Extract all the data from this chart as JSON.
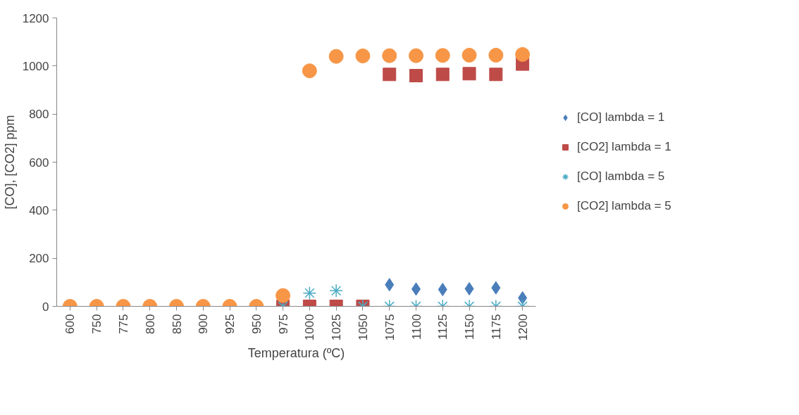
{
  "chart_data": {
    "type": "scatter",
    "xlabel": "Temperatura (ºC)",
    "ylabel": "[CO], [CO2] ppm",
    "categories": [
      "600",
      "750",
      "775",
      "800",
      "850",
      "900",
      "925",
      "950",
      "975",
      "1000",
      "1025",
      "1050",
      "1075",
      "1100",
      "1125",
      "1150",
      "1175",
      "1200"
    ],
    "ylim": [
      0,
      1200
    ],
    "yticks": [
      0,
      200,
      400,
      600,
      800,
      1000,
      1200
    ],
    "grid": false,
    "legend": "right",
    "series": [
      {
        "name": "[CO] lambda = 1",
        "color": "#4a7ebb",
        "marker": "diamond",
        "values": [
          null,
          null,
          null,
          null,
          null,
          null,
          null,
          null,
          null,
          null,
          null,
          null,
          90,
          72,
          70,
          73,
          77,
          35
        ]
      },
      {
        "name": "[CO2] lambda = 1",
        "color": "#be4b48",
        "marker": "square",
        "values": [
          null,
          null,
          null,
          null,
          null,
          null,
          null,
          null,
          0,
          0,
          0,
          0,
          965,
          960,
          965,
          968,
          965,
          1008
        ]
      },
      {
        "name": "[CO] lambda = 5",
        "color": "#4bacc6",
        "marker": "cross",
        "values": [
          null,
          null,
          null,
          null,
          null,
          null,
          null,
          null,
          0,
          55,
          65,
          0,
          0,
          0,
          0,
          0,
          0,
          0
        ]
      },
      {
        "name": "[CO2] lambda = 5",
        "color": "#f79646",
        "marker": "circle",
        "values": [
          0,
          0,
          0,
          0,
          0,
          0,
          0,
          0,
          45,
          980,
          1040,
          1042,
          1043,
          1043,
          1044,
          1045,
          1045,
          1048
        ]
      }
    ]
  }
}
